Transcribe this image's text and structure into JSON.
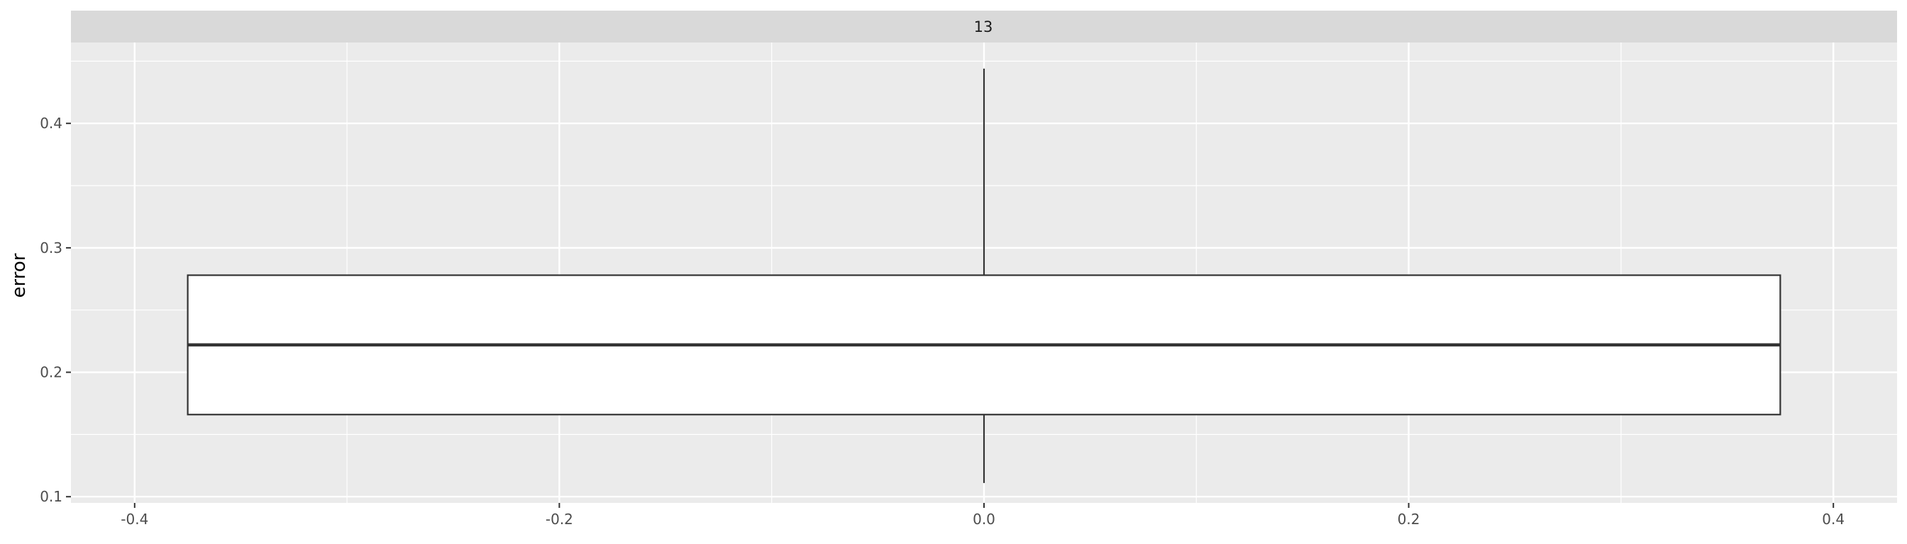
{
  "chart_data": {
    "type": "boxplot",
    "facet_label": "13",
    "ylabel": "error",
    "xlabel": "",
    "xlim": [
      -0.43,
      0.43
    ],
    "ylim": [
      0.095,
      0.465
    ],
    "x_ticks": [
      -0.4,
      -0.2,
      0.0,
      0.2,
      0.4
    ],
    "x_tick_labels": [
      "-0.4",
      "-0.2",
      "0.0",
      "0.2",
      "0.4"
    ],
    "y_ticks": [
      0.1,
      0.2,
      0.3,
      0.4
    ],
    "y_tick_labels": [
      "0.1",
      "0.2",
      "0.3",
      "0.4"
    ],
    "grid": true,
    "box": {
      "x_center": 0.0,
      "x_left": -0.375,
      "x_right": 0.375,
      "whisker_low": 0.111,
      "q1": 0.166,
      "median": 0.222,
      "q3": 0.278,
      "whisker_high": 0.444
    },
    "colors": {
      "panel_bg": "#ebebeb",
      "strip_bg": "#d9d9d9",
      "grid": "#ffffff",
      "box_fill": "#ffffff",
      "box_stroke": "#333333"
    }
  }
}
